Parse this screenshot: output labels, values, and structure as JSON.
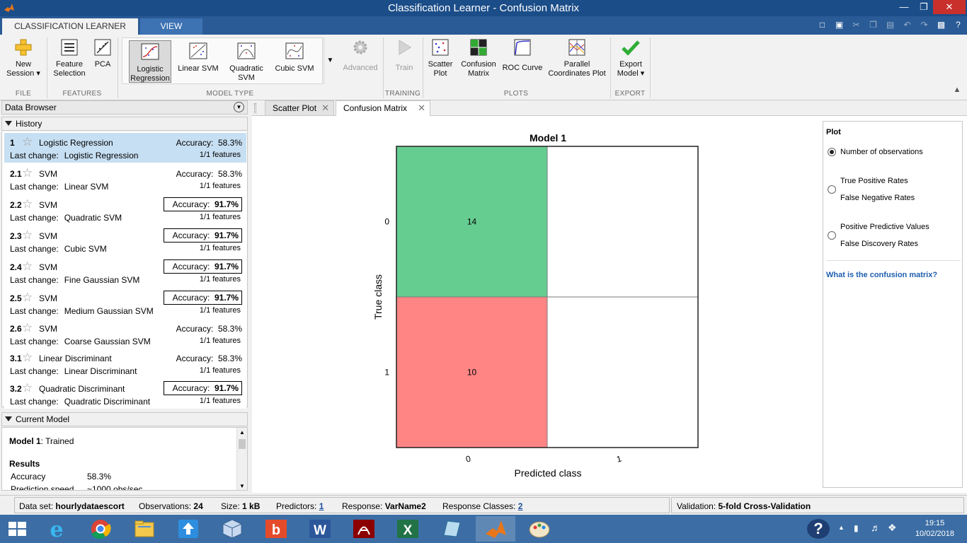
{
  "window": {
    "title": "Classification Learner - Confusion Matrix"
  },
  "ribbon_tabs": [
    {
      "label": "CLASSIFICATION LEARNER",
      "active": true
    },
    {
      "label": "VIEW",
      "active": false
    }
  ],
  "ribbon": {
    "file": {
      "group": "FILE",
      "new_session_line1": "New",
      "new_session_line2": "Session"
    },
    "features": {
      "group": "FEATURES",
      "feature_selection_line1": "Feature",
      "feature_selection_line2": "Selection",
      "pca": "PCA"
    },
    "model_type": {
      "group": "MODEL TYPE",
      "items": [
        {
          "line1": "Logistic",
          "line2": "Regression",
          "selected": true
        },
        {
          "line1": "Linear SVM",
          "line2": ""
        },
        {
          "line1": "Quadratic",
          "line2": "SVM"
        },
        {
          "line1": "Cubic SVM",
          "line2": ""
        }
      ],
      "advanced": "Advanced"
    },
    "training": {
      "group": "TRAINING",
      "train": "Train"
    },
    "plots": {
      "group": "PLOTS",
      "scatter_line1": "Scatter",
      "scatter_line2": "Plot",
      "confusion_line1": "Confusion",
      "confusion_line2": "Matrix",
      "roc": "ROC Curve",
      "parallel_line1": "Parallel",
      "parallel_line2": "Coordinates Plot"
    },
    "export": {
      "group": "EXPORT",
      "export_line1": "Export",
      "export_line2": "Model"
    }
  },
  "data_browser": {
    "title": "Data Browser"
  },
  "history": {
    "title": "History",
    "last_change_label": "Last change:",
    "accuracy_label": "Accuracy:",
    "rows": [
      {
        "num": "1",
        "name": "Logistic Regression",
        "accuracy": "58.3%",
        "last_change": "Logistic Regression",
        "features": "1/1 features",
        "selected": true,
        "best": false
      },
      {
        "num": "2.1",
        "name": "SVM",
        "accuracy": "58.3%",
        "last_change": "Linear SVM",
        "features": "1/1 features",
        "best": false
      },
      {
        "num": "2.2",
        "name": "SVM",
        "accuracy": "91.7%",
        "last_change": "Quadratic SVM",
        "features": "1/1 features",
        "best": true
      },
      {
        "num": "2.3",
        "name": "SVM",
        "accuracy": "91.7%",
        "last_change": "Cubic SVM",
        "features": "1/1 features",
        "best": true
      },
      {
        "num": "2.4",
        "name": "SVM",
        "accuracy": "91.7%",
        "last_change": "Fine Gaussian SVM",
        "features": "1/1 features",
        "best": true
      },
      {
        "num": "2.5",
        "name": "SVM",
        "accuracy": "91.7%",
        "last_change": "Medium Gaussian SVM",
        "features": "1/1 features",
        "best": true
      },
      {
        "num": "2.6",
        "name": "SVM",
        "accuracy": "58.3%",
        "last_change": "Coarse Gaussian SVM",
        "features": "1/1 features",
        "best": false
      },
      {
        "num": "3.1",
        "name": "Linear Discriminant",
        "accuracy": "58.3%",
        "last_change": "Linear Discriminant",
        "features": "1/1 features",
        "best": false
      },
      {
        "num": "3.2",
        "name": "Quadratic Discriminant",
        "accuracy": "91.7%",
        "last_change": "Quadratic Discriminant",
        "features": "1/1 features",
        "best": true
      }
    ]
  },
  "current_model": {
    "title": "Current Model",
    "model_name": "Model 1",
    "status": ": Trained",
    "results_label": "Results",
    "accuracy_label": "Accuracy",
    "accuracy_value": "58.3%",
    "speed_label": "Prediction speed",
    "speed_value": "~1000 obs/sec"
  },
  "doc_tabs": [
    {
      "label": "Scatter Plot",
      "active": false
    },
    {
      "label": "Confusion Matrix",
      "active": true
    }
  ],
  "chart_data": {
    "type": "heatmap",
    "title": "Model 1",
    "xlabel": "Predicted class",
    "ylabel": "True class",
    "x_categories": [
      "0",
      "1"
    ],
    "y_categories": [
      "0",
      "1"
    ],
    "values": [
      [
        14,
        null
      ],
      [
        10,
        null
      ]
    ],
    "cell_colors": [
      [
        "#66cd91",
        "#ffffff"
      ],
      [
        "#ff8585",
        "#ffffff"
      ]
    ]
  },
  "plot_options": {
    "title": "Plot",
    "option1": "Number of observations",
    "option2_line1": "True Positive Rates",
    "option2_line2": "False Negative Rates",
    "option3_line1": "Positive Predictive Values",
    "option3_line2": "False Discovery Rates",
    "selected": 0,
    "help_link": "What is the confusion matrix?"
  },
  "status": {
    "dataset_label": "Data set:",
    "dataset_value": "hourlydataescort",
    "obs_label": "Observations:",
    "obs_value": "24",
    "size_label": "Size:",
    "size_value": "1 kB",
    "pred_label": "Predictors:",
    "pred_value": "1",
    "resp_label": "Response:",
    "resp_value": "VarName2",
    "rc_label": "Response Classes:",
    "rc_value": "2",
    "val_label": "Validation:",
    "val_value": "5-fold Cross-Validation"
  },
  "taskbar": {
    "time": "19:15",
    "date": "10/02/2018"
  }
}
